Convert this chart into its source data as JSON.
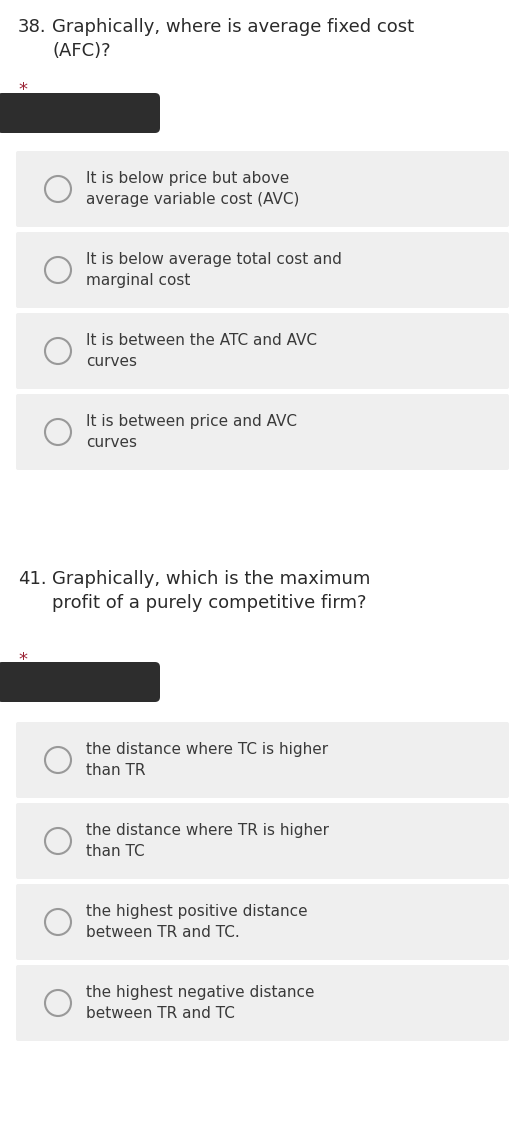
{
  "bg_color": "#ffffff",
  "question1_number": "38.",
  "question1_text": "Graphically, where is average fixed cost\n(AFC)?",
  "question2_number": "41.",
  "question2_text": "Graphically, which is the maximum\nprofit of a purely competitive firm?",
  "required_star": "*",
  "star_color": "#9b2335",
  "pill_color": "#2d2d2d",
  "option_bg": "#efefef",
  "option_text_color": "#3a3a3a",
  "question_text_color": "#2a2a2a",
  "circle_edge_color": "#999999",
  "q1_options": [
    "It is below price but above\naverage variable cost (AVC)",
    "It is below average total cost and\nmarginal cost",
    "It is between the ATC and AVC\ncurves",
    "It is between price and AVC\ncurves"
  ],
  "q2_options": [
    "the distance where TC is higher\nthan TR",
    "the distance where TR is higher\nthan TC",
    "the highest positive distance\nbetween TR and TC.",
    "the highest negative distance\nbetween TR and TC"
  ]
}
